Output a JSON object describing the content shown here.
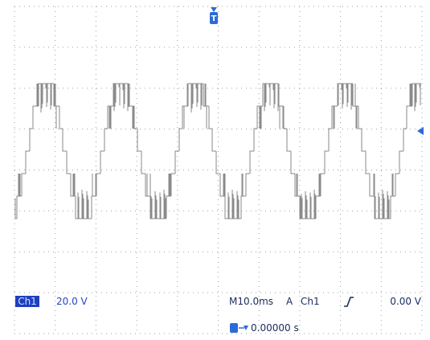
{
  "status": {
    "channel_label": "Ch1",
    "scale": "20.0 V",
    "timebase": "M10.0ms",
    "mode": "A",
    "trigger_source": "Ch1",
    "trigger_level": "0.00 V",
    "trigger_position": "0.00000 s"
  }
}
